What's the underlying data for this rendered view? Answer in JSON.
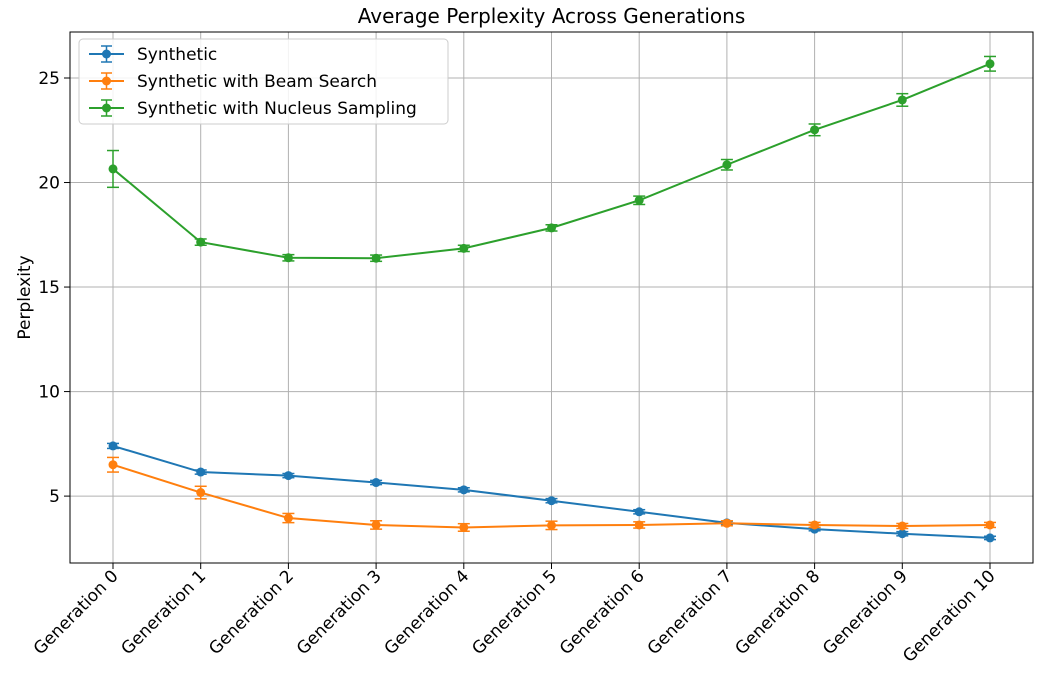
{
  "chart_data": {
    "type": "line",
    "title": "Average Perplexity Across Generations",
    "xlabel": "",
    "ylabel": "Perplexity",
    "categories": [
      "Generation 0",
      "Generation 1",
      "Generation 2",
      "Generation 3",
      "Generation 4",
      "Generation 5",
      "Generation 6",
      "Generation 7",
      "Generation 8",
      "Generation 9",
      "Generation 10"
    ],
    "ylim": [
      1.8,
      27.2
    ],
    "yticks": [
      5,
      10,
      15,
      20,
      25
    ],
    "grid": true,
    "legend_position": "top-left",
    "error_bars": true,
    "series": [
      {
        "name": "Synthetic",
        "color": "#1f77b4",
        "values": [
          7.4,
          6.15,
          5.98,
          5.65,
          5.3,
          4.78,
          4.25,
          3.72,
          3.42,
          3.2,
          3.0
        ],
        "errors": [
          0.12,
          0.1,
          0.1,
          0.1,
          0.1,
          0.1,
          0.1,
          0.08,
          0.08,
          0.1,
          0.08
        ]
      },
      {
        "name": "Synthetic with Beam Search",
        "color": "#ff7f0e",
        "values": [
          6.5,
          5.17,
          3.95,
          3.62,
          3.5,
          3.6,
          3.62,
          3.7,
          3.62,
          3.57,
          3.62
        ],
        "errors": [
          0.35,
          0.3,
          0.22,
          0.2,
          0.18,
          0.2,
          0.15,
          0.12,
          0.12,
          0.12,
          0.12
        ]
      },
      {
        "name": "Synthetic with Nucleus Sampling",
        "color": "#2ca02c",
        "values": [
          20.65,
          17.15,
          16.4,
          16.38,
          16.85,
          17.83,
          19.15,
          20.85,
          22.52,
          23.95,
          25.68
        ],
        "errors": [
          0.88,
          0.15,
          0.15,
          0.15,
          0.15,
          0.15,
          0.2,
          0.25,
          0.28,
          0.3,
          0.35
        ]
      }
    ]
  }
}
